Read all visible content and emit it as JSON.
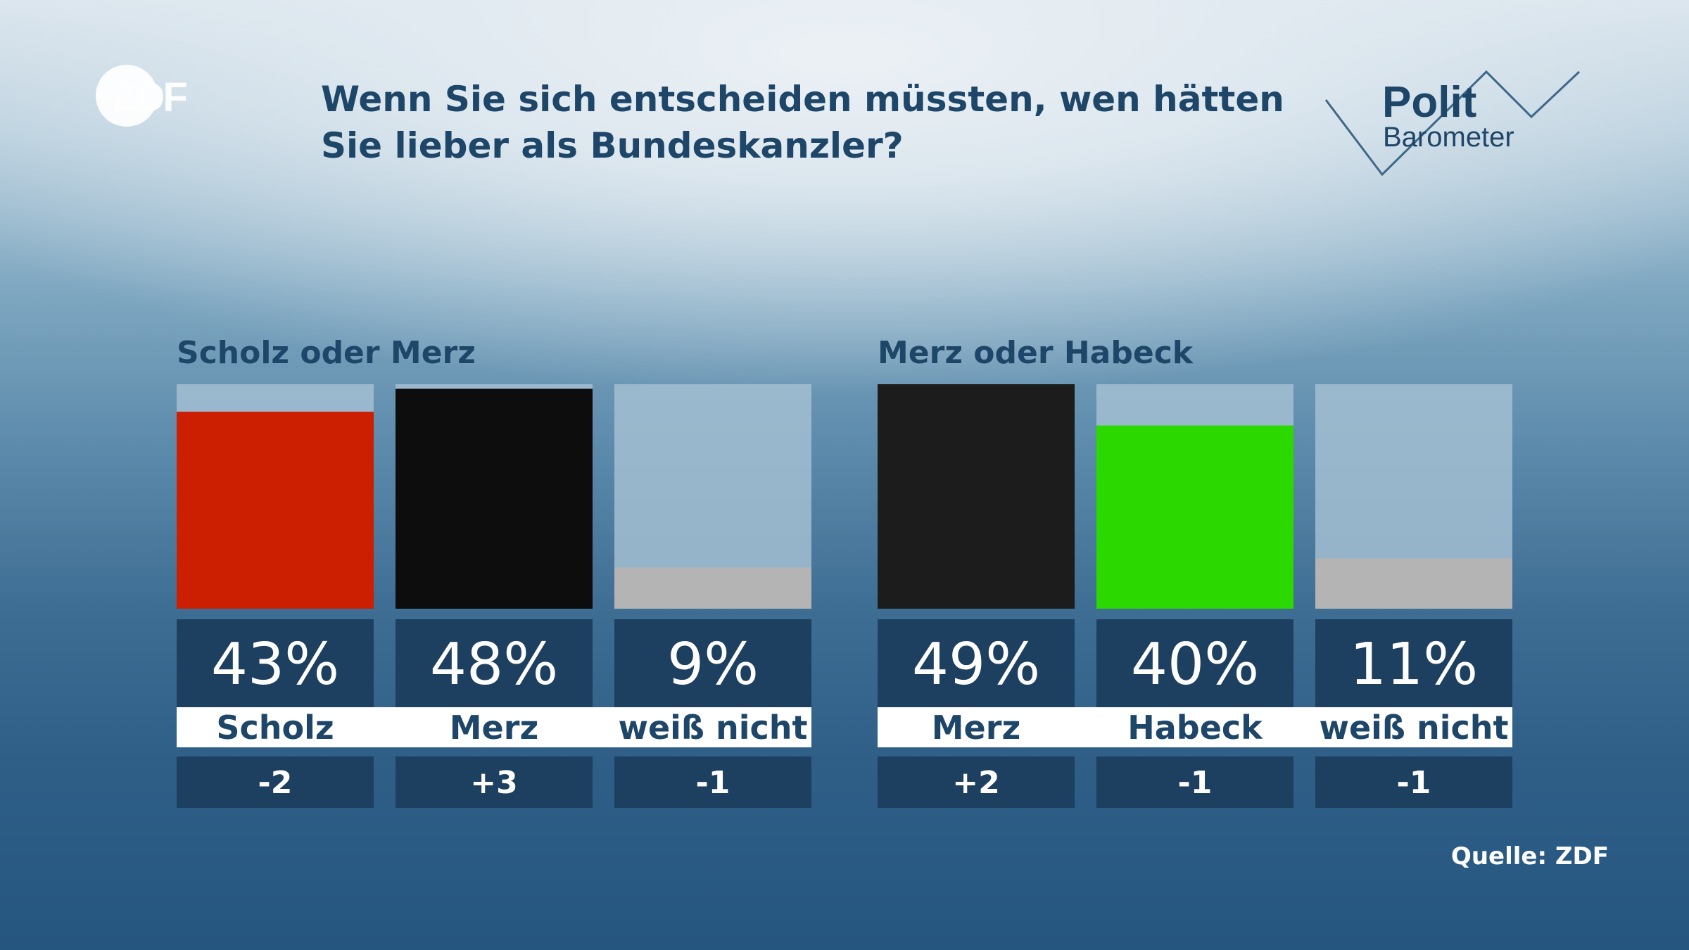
{
  "header": {
    "broadcaster_logo": "ZDF",
    "title_line1": "Wenn Sie sich entscheiden müssten, wen hätten",
    "title_line2": "Sie lieber als Bundeskanzler?",
    "brand_line1": "Polit",
    "brand_line2": "Barometer"
  },
  "footer": {
    "source": "Quelle: ZDF"
  },
  "chart_data": [
    {
      "type": "bar",
      "title": "Scholz oder Merz",
      "categories": [
        "Scholz",
        "Merz",
        "weiß nicht"
      ],
      "values": [
        43,
        48,
        9
      ],
      "value_labels": [
        "43%",
        "48%",
        "9%"
      ],
      "changes": [
        "-2",
        "+3",
        "-1"
      ],
      "colors": [
        "#cc1e00",
        "#0d0d0d",
        "#b4b4b4"
      ],
      "ylim": [
        0,
        49
      ]
    },
    {
      "type": "bar",
      "title": "Merz oder Habeck",
      "categories": [
        "Merz",
        "Habeck",
        "weiß nicht"
      ],
      "values": [
        49,
        40,
        11
      ],
      "value_labels": [
        "49%",
        "40%",
        "11%"
      ],
      "changes": [
        "+2",
        "-1",
        "-1"
      ],
      "colors": [
        "#1c1c1c",
        "#2bd900",
        "#b4b4b4"
      ],
      "ylim": [
        0,
        49
      ]
    }
  ]
}
